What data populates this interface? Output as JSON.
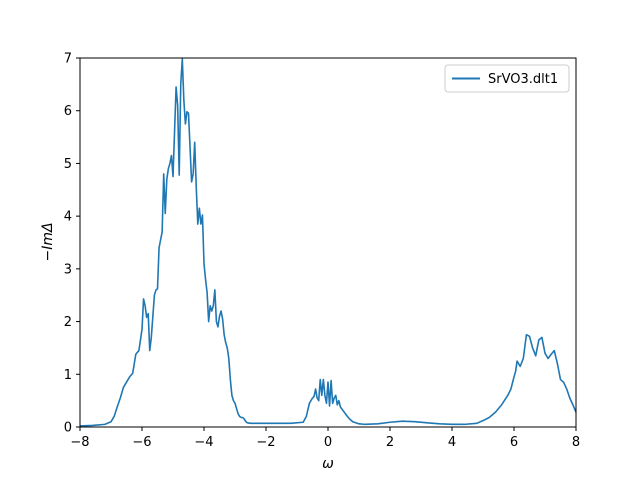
{
  "chart_data": {
    "type": "line",
    "title": "",
    "xlabel": "ω",
    "ylabel": "−ImΔ",
    "xlim": [
      -8,
      8
    ],
    "ylim": [
      0,
      7
    ],
    "xticks": [
      -8,
      -6,
      -4,
      -2,
      0,
      2,
      4,
      6,
      8
    ],
    "yticks": [
      0,
      1,
      2,
      3,
      4,
      5,
      6,
      7
    ],
    "xtick_labels": [
      "−8",
      "−6",
      "−4",
      "−2",
      "0",
      "2",
      "4",
      "6",
      "8"
    ],
    "ytick_labels": [
      "0",
      "1",
      "2",
      "3",
      "4",
      "5",
      "6",
      "7"
    ],
    "grid": false,
    "legend_position": "top-right",
    "series": [
      {
        "name": "SrVO3.dlt1",
        "color": "#1f77b4",
        "x": [
          -8.0,
          -7.6,
          -7.2,
          -7.0,
          -6.9,
          -6.8,
          -6.7,
          -6.6,
          -6.5,
          -6.4,
          -6.3,
          -6.2,
          -6.1,
          -6.05,
          -6.0,
          -5.95,
          -5.9,
          -5.85,
          -5.8,
          -5.75,
          -5.7,
          -5.65,
          -5.6,
          -5.55,
          -5.5,
          -5.45,
          -5.4,
          -5.35,
          -5.3,
          -5.25,
          -5.2,
          -5.15,
          -5.1,
          -5.05,
          -5.0,
          -4.95,
          -4.9,
          -4.85,
          -4.8,
          -4.75,
          -4.7,
          -4.65,
          -4.6,
          -4.55,
          -4.5,
          -4.45,
          -4.4,
          -4.35,
          -4.3,
          -4.25,
          -4.2,
          -4.15,
          -4.1,
          -4.05,
          -4.0,
          -3.95,
          -3.9,
          -3.85,
          -3.8,
          -3.75,
          -3.7,
          -3.65,
          -3.6,
          -3.55,
          -3.5,
          -3.45,
          -3.4,
          -3.35,
          -3.3,
          -3.25,
          -3.2,
          -3.15,
          -3.1,
          -3.05,
          -3.0,
          -2.95,
          -2.9,
          -2.85,
          -2.8,
          -2.75,
          -2.7,
          -2.65,
          -2.6,
          -2.5,
          -2.4,
          -2.2,
          -2.0,
          -1.6,
          -1.2,
          -0.8,
          -0.7,
          -0.6,
          -0.5,
          -0.45,
          -0.4,
          -0.35,
          -0.3,
          -0.25,
          -0.2,
          -0.15,
          -0.1,
          -0.05,
          0.0,
          0.05,
          0.1,
          0.15,
          0.2,
          0.25,
          0.3,
          0.35,
          0.4,
          0.5,
          0.6,
          0.7,
          0.8,
          1.0,
          1.2,
          1.6,
          2.0,
          2.4,
          2.8,
          3.2,
          3.6,
          4.0,
          4.4,
          4.8,
          5.0,
          5.2,
          5.4,
          5.6,
          5.8,
          5.9,
          6.0,
          6.05,
          6.1,
          6.15,
          6.2,
          6.3,
          6.4,
          6.5,
          6.6,
          6.7,
          6.8,
          6.9,
          7.0,
          7.1,
          7.2,
          7.3,
          7.4,
          7.5,
          7.6,
          7.7,
          7.8,
          7.9,
          8.0
        ],
        "y": [
          0.02,
          0.03,
          0.05,
          0.1,
          0.2,
          0.38,
          0.55,
          0.75,
          0.85,
          0.95,
          1.02,
          1.38,
          1.45,
          1.65,
          1.85,
          2.43,
          2.3,
          2.08,
          2.15,
          1.45,
          1.7,
          2.1,
          2.5,
          2.6,
          2.62,
          3.4,
          3.55,
          3.7,
          4.8,
          4.05,
          4.7,
          4.9,
          5.0,
          5.15,
          4.75,
          5.6,
          6.45,
          6.1,
          4.78,
          6.5,
          6.98,
          6.2,
          5.75,
          5.98,
          5.95,
          5.3,
          4.65,
          4.8,
          5.4,
          4.55,
          3.85,
          4.15,
          3.85,
          4.02,
          3.1,
          2.8,
          2.55,
          2.0,
          2.3,
          2.2,
          2.3,
          2.6,
          2.0,
          1.9,
          2.1,
          2.2,
          2.05,
          1.75,
          1.6,
          1.5,
          1.3,
          0.9,
          0.6,
          0.5,
          0.45,
          0.35,
          0.25,
          0.2,
          0.18,
          0.18,
          0.15,
          0.1,
          0.08,
          0.07,
          0.07,
          0.07,
          0.07,
          0.07,
          0.07,
          0.09,
          0.2,
          0.45,
          0.55,
          0.58,
          0.72,
          0.55,
          0.5,
          0.9,
          0.6,
          0.9,
          0.6,
          0.45,
          0.85,
          0.4,
          0.88,
          0.45,
          0.55,
          0.6,
          0.42,
          0.5,
          0.38,
          0.3,
          0.22,
          0.15,
          0.1,
          0.06,
          0.05,
          0.06,
          0.09,
          0.11,
          0.1,
          0.08,
          0.06,
          0.05,
          0.05,
          0.07,
          0.12,
          0.18,
          0.28,
          0.42,
          0.6,
          0.72,
          0.95,
          1.05,
          1.25,
          1.2,
          1.15,
          1.3,
          1.75,
          1.72,
          1.5,
          1.35,
          1.65,
          1.7,
          1.4,
          1.3,
          1.38,
          1.45,
          1.2,
          0.9,
          0.85,
          0.72,
          0.55,
          0.42,
          0.28
        ]
      }
    ]
  }
}
